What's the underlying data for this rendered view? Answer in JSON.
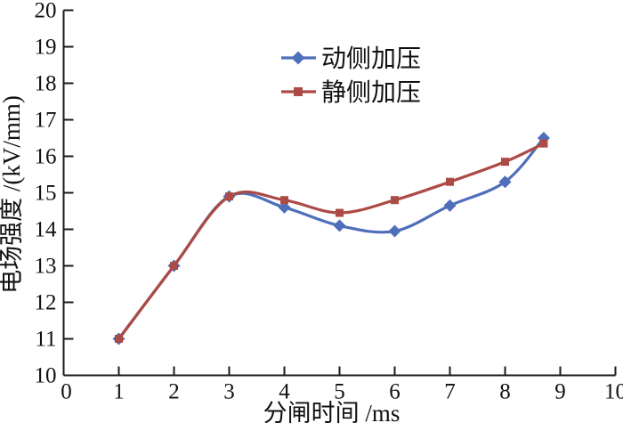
{
  "chart_data": {
    "type": "line",
    "x": [
      1,
      2,
      3,
      4,
      5,
      6,
      7,
      8,
      8.7
    ],
    "series": [
      {
        "name": "动侧加压",
        "marker": "diamond",
        "color": "#4f6fba",
        "values": [
          11.0,
          13.0,
          14.9,
          14.6,
          14.1,
          13.95,
          14.65,
          15.3,
          16.5
        ]
      },
      {
        "name": "静侧加压",
        "marker": "square",
        "color": "#ac4a45",
        "values": [
          11.0,
          13.0,
          14.9,
          14.8,
          14.45,
          14.8,
          15.3,
          15.85,
          16.35
        ]
      }
    ],
    "xlabel": "分闸时间 /ms",
    "ylabel": "电场强度 /(kV/mm)",
    "xlim": [
      0,
      10
    ],
    "ylim": [
      10,
      20
    ],
    "x_ticks": [
      0,
      1,
      2,
      3,
      4,
      5,
      6,
      7,
      8,
      9,
      10
    ],
    "x_tick_labels": [
      "0",
      "1",
      "2",
      "3",
      "4",
      "5",
      "6",
      "7",
      "8",
      "9",
      "10"
    ],
    "y_ticks": [
      10,
      11,
      12,
      13,
      14,
      15,
      16,
      17,
      18,
      19,
      20
    ],
    "y_tick_labels": [
      "10",
      "11",
      "12",
      "13",
      "14",
      "15",
      "16",
      "17",
      "18",
      "19",
      "20"
    ],
    "legend_position": "inside-top-center",
    "grid": false,
    "axis_color": "#1a1a1a",
    "background": "#ffffff"
  }
}
